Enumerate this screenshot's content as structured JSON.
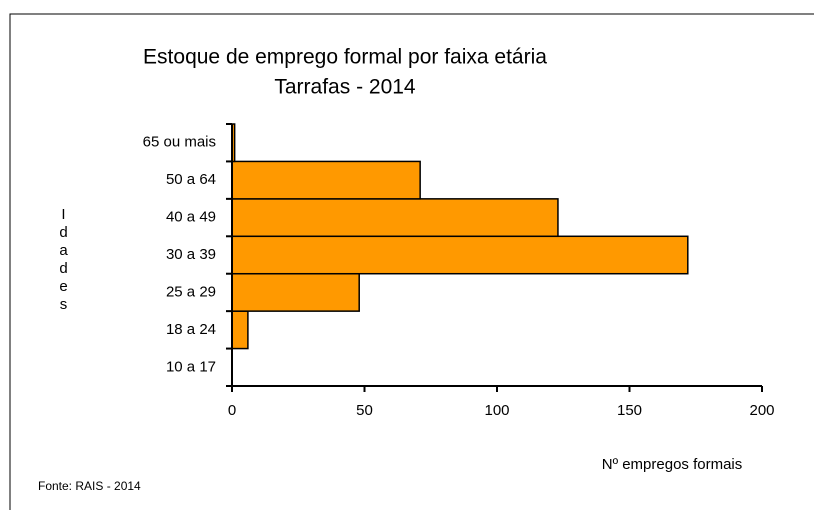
{
  "chart_data": {
    "type": "bar",
    "orientation": "horizontal",
    "title": "Estoque de emprego formal por faixa etária",
    "subtitle": "Tarrafas - 2014",
    "x_label": "Nº empregos formais",
    "y_label": "Idades",
    "source": "Fonte: RAIS - 2014",
    "categories": [
      "10 a 17",
      "18 a 24",
      "25 a 29",
      "30 a 39",
      "40 a 49",
      "50 a 64",
      "65 ou mais"
    ],
    "values": [
      0,
      6,
      48,
      172,
      123,
      71,
      1
    ],
    "color": "#ff9900",
    "xlim": [
      0,
      200
    ],
    "xticks": [
      0,
      50,
      100,
      150,
      200
    ],
    "grid": false
  }
}
